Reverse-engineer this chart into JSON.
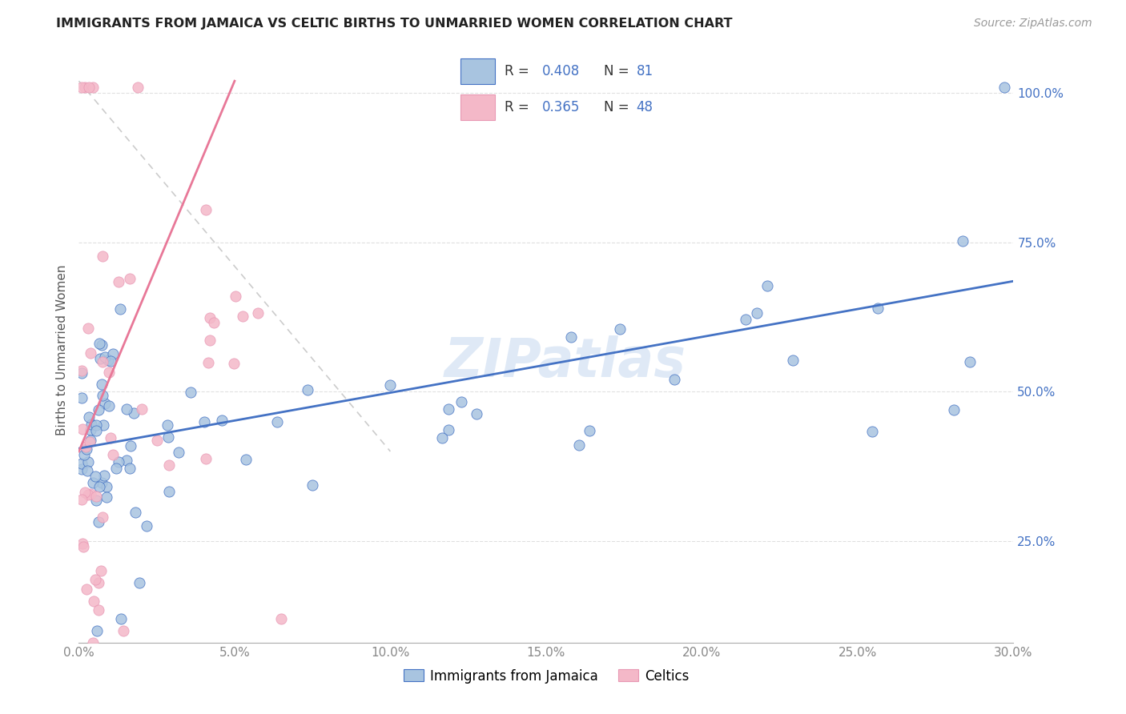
{
  "title": "IMMIGRANTS FROM JAMAICA VS CELTIC BIRTHS TO UNMARRIED WOMEN CORRELATION CHART",
  "source": "Source: ZipAtlas.com",
  "ylabel": "Births to Unmarried Women",
  "xmin": 0.0,
  "xmax": 0.3,
  "ymin": 0.08,
  "ymax": 1.06,
  "x_tick_labels": [
    "0.0%",
    "5.0%",
    "10.0%",
    "15.0%",
    "20.0%",
    "25.0%",
    "30.0%"
  ],
  "x_ticks": [
    0.0,
    0.05,
    0.1,
    0.15,
    0.2,
    0.25,
    0.3
  ],
  "y_tick_labels": [
    "25.0%",
    "50.0%",
    "75.0%",
    "100.0%"
  ],
  "y_ticks": [
    0.25,
    0.5,
    0.75,
    1.0
  ],
  "jamaica_color": "#a8c4e0",
  "celtics_color": "#f4b8c8",
  "jamaica_edge_color": "#4472c4",
  "celtics_edge_color": "#e898b4",
  "trendline_jamaica_color": "#4472c4",
  "trendline_celtics_color": "#e87898",
  "diagonal_color": "#cccccc",
  "watermark": "ZIPatlas",
  "legend_r_jamaica": "0.408",
  "legend_n_jamaica": "81",
  "legend_r_celtics": "0.365",
  "legend_n_celtics": "48",
  "ytick_color": "#4472c4",
  "xtick_color": "#888888",
  "grid_color": "#e0e0e0",
  "background_color": "#ffffff"
}
